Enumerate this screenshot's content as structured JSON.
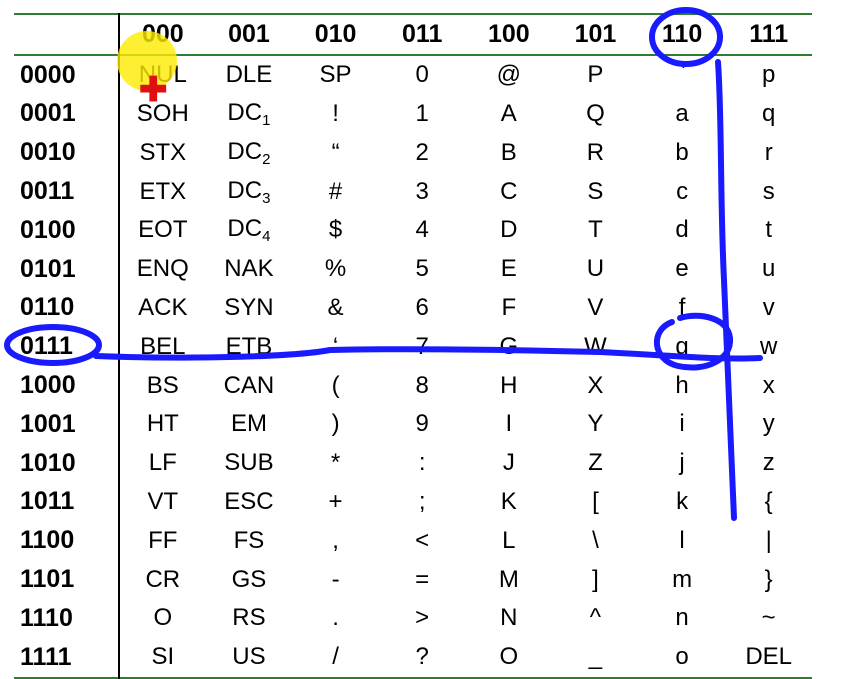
{
  "table": {
    "columns": [
      "000",
      "001",
      "010",
      "011",
      "100",
      "101",
      "110",
      "111"
    ],
    "rows": [
      {
        "code": "0000",
        "cells": [
          [
            "NUL"
          ],
          [
            "DLE"
          ],
          [
            "SP"
          ],
          [
            "0"
          ],
          [
            "@"
          ],
          [
            "P"
          ],
          [
            "`"
          ],
          [
            "p"
          ]
        ]
      },
      {
        "code": "0001",
        "cells": [
          [
            "SOH"
          ],
          [
            "DC",
            "1"
          ],
          [
            "!"
          ],
          [
            "1"
          ],
          [
            "A"
          ],
          [
            "Q"
          ],
          [
            "a"
          ],
          [
            "q"
          ]
        ]
      },
      {
        "code": "0010",
        "cells": [
          [
            "STX"
          ],
          [
            "DC",
            "2"
          ],
          [
            "“"
          ],
          [
            "2"
          ],
          [
            "B"
          ],
          [
            "R"
          ],
          [
            "b"
          ],
          [
            "r"
          ]
        ]
      },
      {
        "code": "0011",
        "cells": [
          [
            "ETX"
          ],
          [
            "DC",
            "3"
          ],
          [
            "#"
          ],
          [
            "3"
          ],
          [
            "C"
          ],
          [
            "S"
          ],
          [
            "c"
          ],
          [
            "s"
          ]
        ]
      },
      {
        "code": "0100",
        "cells": [
          [
            "EOT"
          ],
          [
            "DC",
            "4"
          ],
          [
            "$"
          ],
          [
            "4"
          ],
          [
            "D"
          ],
          [
            "T"
          ],
          [
            "d"
          ],
          [
            "t"
          ]
        ]
      },
      {
        "code": "0101",
        "cells": [
          [
            "ENQ"
          ],
          [
            "NAK"
          ],
          [
            "%"
          ],
          [
            "5"
          ],
          [
            "E"
          ],
          [
            "U"
          ],
          [
            "e"
          ],
          [
            "u"
          ]
        ]
      },
      {
        "code": "0110",
        "cells": [
          [
            "ACK"
          ],
          [
            "SYN"
          ],
          [
            "&"
          ],
          [
            "6"
          ],
          [
            "F"
          ],
          [
            "V"
          ],
          [
            "f"
          ],
          [
            "v"
          ]
        ]
      },
      {
        "code": "0111",
        "cells": [
          [
            "BEL"
          ],
          [
            "ETB"
          ],
          [
            "‘"
          ],
          [
            "7"
          ],
          [
            "G"
          ],
          [
            "W"
          ],
          [
            "g"
          ],
          [
            "w"
          ]
        ]
      },
      {
        "code": "1000",
        "cells": [
          [
            "BS"
          ],
          [
            "CAN"
          ],
          [
            "("
          ],
          [
            "8"
          ],
          [
            "H"
          ],
          [
            "X"
          ],
          [
            "h"
          ],
          [
            "x"
          ]
        ]
      },
      {
        "code": "1001",
        "cells": [
          [
            "HT"
          ],
          [
            "EM"
          ],
          [
            ")"
          ],
          [
            "9"
          ],
          [
            "I"
          ],
          [
            "Y"
          ],
          [
            "i"
          ],
          [
            "y"
          ]
        ]
      },
      {
        "code": "1010",
        "cells": [
          [
            "LF"
          ],
          [
            "SUB"
          ],
          [
            "*"
          ],
          [
            ":"
          ],
          [
            "J"
          ],
          [
            "Z"
          ],
          [
            "j"
          ],
          [
            "z"
          ]
        ]
      },
      {
        "code": "1011",
        "cells": [
          [
            "VT"
          ],
          [
            "ESC"
          ],
          [
            "+"
          ],
          [
            ";"
          ],
          [
            "K"
          ],
          [
            "["
          ],
          [
            "k"
          ],
          [
            "{"
          ]
        ]
      },
      {
        "code": "1100",
        "cells": [
          [
            "FF"
          ],
          [
            "FS"
          ],
          [
            ","
          ],
          [
            "<"
          ],
          [
            "L"
          ],
          [
            "\\"
          ],
          [
            "l"
          ],
          [
            "|"
          ]
        ]
      },
      {
        "code": "1101",
        "cells": [
          [
            "CR"
          ],
          [
            "GS"
          ],
          [
            "-"
          ],
          [
            "="
          ],
          [
            "M"
          ],
          [
            "]"
          ],
          [
            "m"
          ],
          [
            "}"
          ]
        ]
      },
      {
        "code": "1110",
        "cells": [
          [
            "O"
          ],
          [
            "RS"
          ],
          [
            "."
          ],
          [
            ">"
          ],
          [
            "N"
          ],
          [
            "^"
          ],
          [
            "n"
          ],
          [
            "~"
          ]
        ]
      },
      {
        "code": "1111",
        "cells": [
          [
            "SI"
          ],
          [
            "US"
          ],
          [
            "/"
          ],
          [
            "?"
          ],
          [
            "O"
          ],
          [
            "_"
          ],
          [
            "o"
          ],
          [
            "DEL"
          ]
        ]
      }
    ]
  },
  "annotations": {
    "ink_color": "#1a1aff",
    "circled_column": "110",
    "circled_row": "0111",
    "circled_cell": "g"
  },
  "cursor": {
    "highlight_color": "#ffeb00",
    "cross_color": "#e01010",
    "cross_glyph": "✚"
  }
}
